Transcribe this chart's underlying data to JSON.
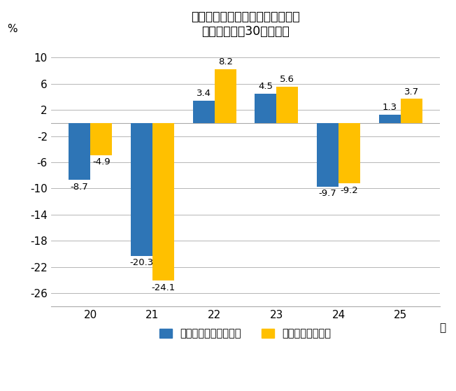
{
  "title_line1": "夏季賞与の前年比の推移・三重県",
  "title_line2": "（事業所規模30人以上）",
  "years": [
    "20",
    "21",
    "22",
    "23",
    "24",
    "25"
  ],
  "xlabel_suffix": "年",
  "ylabel": "%",
  "series1_label": "調査産業計（前年比）",
  "series2_label": "製造業（前年比）",
  "series1_values": [
    -8.7,
    -20.3,
    3.4,
    4.5,
    -9.7,
    1.3
  ],
  "series2_values": [
    -4.9,
    -24.1,
    8.2,
    5.6,
    -9.2,
    3.7
  ],
  "series1_color": "#2E75B6",
  "series2_color": "#FFC000",
  "ylim": [
    -28,
    12
  ],
  "yticks": [
    -26,
    -22,
    -18,
    -14,
    -10,
    -6,
    -2,
    2,
    6,
    10
  ],
  "bar_width": 0.35,
  "background_color": "#FFFFFF",
  "grid_color": "#AAAAAA",
  "label_fontsize": 9.5,
  "title_fontsize": 12.5,
  "tick_fontsize": 11,
  "legend_fontsize": 10.5
}
